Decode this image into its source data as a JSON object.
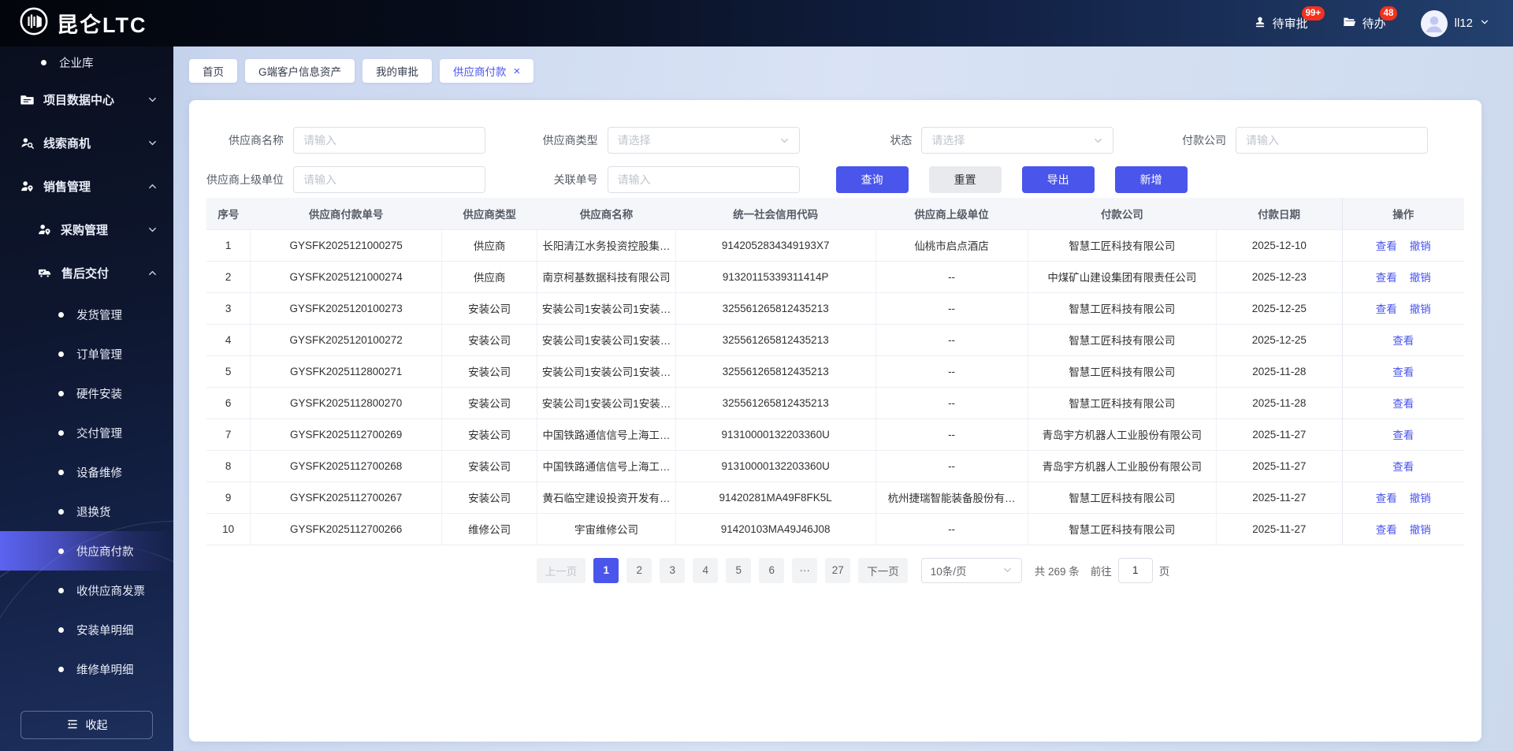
{
  "theme": {
    "primary": "#4a55ec",
    "badge_red": "#f4321f",
    "link_blue": "#4a55ec"
  },
  "navbar": {
    "logo_text": "昆仑LTC",
    "items": [
      {
        "label": "待审批",
        "badge": "99+",
        "icon": "stamp-icon"
      },
      {
        "label": "待办",
        "badge": "48",
        "icon": "folder-open-icon"
      }
    ],
    "user": {
      "name": "ll12"
    }
  },
  "sidebar": {
    "items": [
      {
        "label": "企业库",
        "type": "leaf",
        "level": 2
      },
      {
        "label": "项目数据中心",
        "type": "group",
        "level": 1,
        "icon": "data-center-icon",
        "chevron": "down"
      },
      {
        "label": "线索商机",
        "type": "group",
        "level": 1,
        "icon": "leads-icon",
        "chevron": "down"
      },
      {
        "label": "销售管理",
        "type": "group",
        "level": 1,
        "icon": "sales-icon",
        "chevron": "up"
      },
      {
        "label": "采购管理",
        "type": "group",
        "level": 2,
        "icon": "purchase-icon",
        "chevron": "down"
      },
      {
        "label": "售后交付",
        "type": "group",
        "level": 2,
        "icon": "delivery-icon",
        "chevron": "up"
      },
      {
        "label": "发货管理",
        "type": "leaf",
        "level": 3
      },
      {
        "label": "订单管理",
        "type": "leaf",
        "level": 3
      },
      {
        "label": "硬件安装",
        "type": "leaf",
        "level": 3
      },
      {
        "label": "交付管理",
        "type": "leaf",
        "level": 3
      },
      {
        "label": "设备维修",
        "type": "leaf",
        "level": 3
      },
      {
        "label": "退换货",
        "type": "leaf",
        "level": 3
      },
      {
        "label": "供应商付款",
        "type": "leaf",
        "level": 3,
        "active": true
      },
      {
        "label": "收供应商发票",
        "type": "leaf",
        "level": 3
      },
      {
        "label": "安装单明细",
        "type": "leaf",
        "level": 3
      },
      {
        "label": "维修单明细",
        "type": "leaf",
        "level": 3
      }
    ],
    "collapse_label": "收起"
  },
  "tabs": [
    {
      "label": "首页"
    },
    {
      "label": "G端客户信息资产"
    },
    {
      "label": "我的审批"
    },
    {
      "label": "供应商付款",
      "active": true,
      "closable": true,
      "close_glyph": "×"
    }
  ],
  "filters": {
    "rows": [
      [
        {
          "label": "供应商名称",
          "type": "input",
          "placeholder": "请输入"
        },
        {
          "label": "供应商类型",
          "type": "select",
          "placeholder": "请选择"
        },
        {
          "label": "状态",
          "type": "select",
          "placeholder": "请选择"
        },
        {
          "label": "付款公司",
          "type": "input",
          "placeholder": "请输入"
        }
      ],
      [
        {
          "label": "供应商上级单位",
          "type": "input",
          "placeholder": "请输入"
        },
        {
          "label": "关联单号",
          "type": "input",
          "placeholder": "请输入"
        }
      ]
    ],
    "actions": [
      {
        "label": "查询",
        "style": "primary"
      },
      {
        "label": "重置",
        "style": "plain"
      },
      {
        "label": "导出",
        "style": "primary"
      },
      {
        "label": "新增",
        "style": "primary"
      }
    ]
  },
  "table": {
    "columns": [
      {
        "key": "no",
        "label": "序号"
      },
      {
        "key": "order_no",
        "label": "供应商付款单号"
      },
      {
        "key": "supplier_type",
        "label": "供应商类型"
      },
      {
        "key": "supplier_name",
        "label": "供应商名称"
      },
      {
        "key": "credit_code",
        "label": "统一社会信用代码"
      },
      {
        "key": "parent_unit",
        "label": "供应商上级单位"
      },
      {
        "key": "pay_company",
        "label": "付款公司"
      },
      {
        "key": "pay_date",
        "label": "付款日期"
      },
      {
        "key": "op",
        "label": "操作"
      }
    ],
    "rows": [
      {
        "no": "1",
        "order_no": "GYSFK2025121000275",
        "supplier_type": "供应商",
        "supplier_name": "长阳清江水务投资控股集…",
        "credit_code": "9142052834349193X7",
        "parent_unit": "仙桃市启点酒店",
        "pay_company": "智慧工匠科技有限公司",
        "pay_date": "2025-12-10",
        "actions": [
          "查看",
          "撤销"
        ]
      },
      {
        "no": "2",
        "order_no": "GYSFK2025121000274",
        "supplier_type": "供应商",
        "supplier_name": "南京柯基数据科技有限公司",
        "credit_code": "91320115339311414P",
        "parent_unit": "--",
        "pay_company": "中煤矿山建设集团有限责任公司",
        "pay_date": "2025-12-23",
        "actions": [
          "查看",
          "撤销"
        ]
      },
      {
        "no": "3",
        "order_no": "GYSFK2025120100273",
        "supplier_type": "安装公司",
        "supplier_name": "安装公司1安装公司1安装…",
        "credit_code": "325561265812435213",
        "parent_unit": "--",
        "pay_company": "智慧工匠科技有限公司",
        "pay_date": "2025-12-25",
        "actions": [
          "查看",
          "撤销"
        ]
      },
      {
        "no": "4",
        "order_no": "GYSFK2025120100272",
        "supplier_type": "安装公司",
        "supplier_name": "安装公司1安装公司1安装…",
        "credit_code": "325561265812435213",
        "parent_unit": "--",
        "pay_company": "智慧工匠科技有限公司",
        "pay_date": "2025-12-25",
        "actions": [
          "查看"
        ]
      },
      {
        "no": "5",
        "order_no": "GYSFK2025112800271",
        "supplier_type": "安装公司",
        "supplier_name": "安装公司1安装公司1安装…",
        "credit_code": "325561265812435213",
        "parent_unit": "--",
        "pay_company": "智慧工匠科技有限公司",
        "pay_date": "2025-11-28",
        "actions": [
          "查看"
        ]
      },
      {
        "no": "6",
        "order_no": "GYSFK2025112800270",
        "supplier_type": "安装公司",
        "supplier_name": "安装公司1安装公司1安装…",
        "credit_code": "325561265812435213",
        "parent_unit": "--",
        "pay_company": "智慧工匠科技有限公司",
        "pay_date": "2025-11-28",
        "actions": [
          "查看"
        ]
      },
      {
        "no": "7",
        "order_no": "GYSFK2025112700269",
        "supplier_type": "安装公司",
        "supplier_name": "中国铁路通信信号上海工…",
        "credit_code": "91310000132203360U",
        "parent_unit": "--",
        "pay_company": "青岛宇方机器人工业股份有限公司",
        "pay_date": "2025-11-27",
        "actions": [
          "查看"
        ]
      },
      {
        "no": "8",
        "order_no": "GYSFK2025112700268",
        "supplier_type": "安装公司",
        "supplier_name": "中国铁路通信信号上海工…",
        "credit_code": "91310000132203360U",
        "parent_unit": "--",
        "pay_company": "青岛宇方机器人工业股份有限公司",
        "pay_date": "2025-11-27",
        "actions": [
          "查看"
        ]
      },
      {
        "no": "9",
        "order_no": "GYSFK2025112700267",
        "supplier_type": "安装公司",
        "supplier_name": "黄石临空建设投资开发有…",
        "credit_code": "91420281MA49F8FK5L",
        "parent_unit": "杭州捷瑞智能装备股份有…",
        "pay_company": "智慧工匠科技有限公司",
        "pay_date": "2025-11-27",
        "actions": [
          "查看",
          "撤销"
        ]
      },
      {
        "no": "10",
        "order_no": "GYSFK2025112700266",
        "supplier_type": "维修公司",
        "supplier_name": "宇宙维修公司",
        "credit_code": "91420103MA49J46J08",
        "parent_unit": "--",
        "pay_company": "智慧工匠科技有限公司",
        "pay_date": "2025-11-27",
        "actions": [
          "查看",
          "撤销"
        ]
      }
    ]
  },
  "pagination": {
    "prev_label": "上一页",
    "next_label": "下一页",
    "pages": [
      {
        "label": "1",
        "active": true
      },
      {
        "label": "2"
      },
      {
        "label": "3"
      },
      {
        "label": "4"
      },
      {
        "label": "5"
      },
      {
        "label": "6"
      },
      {
        "label": "···",
        "ellipsis": true
      },
      {
        "label": "27"
      }
    ],
    "page_size": "10条/页",
    "total_text": "共 269 条",
    "goto_label": "前往",
    "goto_value": "1",
    "goto_suffix": "页"
  }
}
